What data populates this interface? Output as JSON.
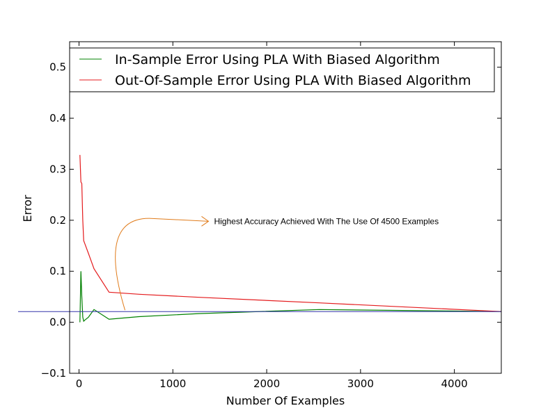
{
  "chart_data": {
    "type": "line",
    "title": "",
    "xlabel": "Number Of Examples",
    "ylabel": "Error",
    "xlim": [
      -100,
      4500
    ],
    "ylim": [
      -0.1,
      0.55
    ],
    "xticks": [
      0,
      1000,
      2000,
      3000,
      4000
    ],
    "xtick_labels": [
      "0",
      "1000",
      "2000",
      "3000",
      "4000"
    ],
    "yticks": [
      -0.1,
      0.0,
      0.1,
      0.2,
      0.3,
      0.4,
      0.5
    ],
    "ytick_labels": [
      "−0.1",
      "0.0",
      "0.1",
      "0.2",
      "0.3",
      "0.4",
      "0.5"
    ],
    "grid": false,
    "legend_position": "top",
    "series": [
      {
        "name": "In-Sample Error Using PLA With Biased Algorithm",
        "color": "#008000",
        "x": [
          10,
          20,
          30,
          40,
          50,
          60,
          100,
          160,
          320,
          640,
          1280,
          2560,
          4500
        ],
        "y": [
          0.0,
          0.1,
          0.05,
          0.01,
          0.002,
          0.004,
          0.01,
          0.025,
          0.006,
          0.011,
          0.017,
          0.025,
          0.021
        ]
      },
      {
        "name": "Out-Of-Sample Error Using PLA With Biased Algorithm",
        "color": "#e41a1c",
        "x": [
          10,
          20,
          30,
          40,
          50,
          60,
          100,
          160,
          320,
          640,
          1280,
          2560,
          4500
        ],
        "y": [
          0.328,
          0.275,
          0.272,
          0.2,
          0.16,
          0.155,
          0.135,
          0.105,
          0.059,
          0.055,
          0.049,
          0.038,
          0.021
        ]
      }
    ],
    "reference_line": {
      "y": 0.021,
      "color": "#3333aa"
    },
    "annotation": {
      "text": "Highest Accuracy Achieved With The Use Of 4500 Examples",
      "color": "#e07b1a",
      "arrow_start": [
        490,
        0.021
      ],
      "arrow_end": [
        1380,
        0.198
      ]
    }
  }
}
